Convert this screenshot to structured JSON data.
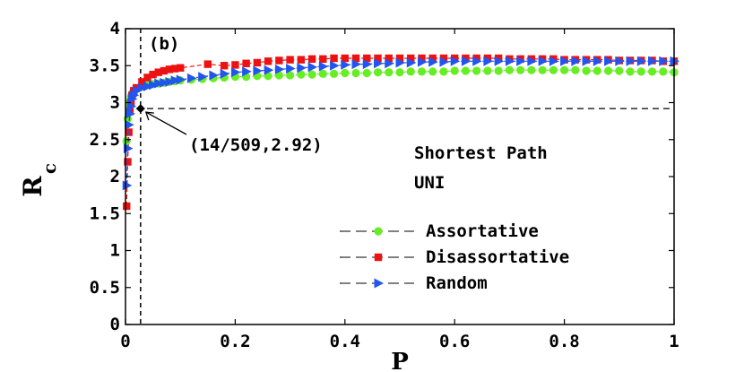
{
  "chart_data": {
    "type": "line",
    "panel_label": "(b)",
    "xlabel": "P",
    "ylabel": {
      "main": "R",
      "sub": "c"
    },
    "xlim": [
      0,
      1
    ],
    "ylim": [
      0,
      4
    ],
    "xticks": [
      "0",
      "0.2",
      "0.4",
      "0.6",
      "0.8",
      "1"
    ],
    "yticks": [
      "0",
      "0.5",
      "1",
      "1.5",
      "2",
      "2.5",
      "3",
      "3.5",
      "4"
    ],
    "grid": false,
    "reference_lines": {
      "x": 0.0275,
      "y": 2.92
    },
    "critical_point": {
      "x": 0.0275,
      "y": 2.92,
      "label": "(14/509,2.92)"
    },
    "annotation_lines": [
      "Shortest Path",
      "UNI"
    ],
    "legend_position": "lower-right",
    "series": [
      {
        "name": "Assortative",
        "color": "#66ee22",
        "marker": "circle",
        "x": [
          0.002,
          0.004,
          0.006,
          0.008,
          0.01,
          0.012,
          0.015,
          0.02,
          0.03,
          0.04,
          0.05,
          0.06,
          0.07,
          0.08,
          0.09,
          0.1,
          0.12,
          0.14,
          0.16,
          0.18,
          0.2,
          0.22,
          0.24,
          0.26,
          0.28,
          0.3,
          0.32,
          0.34,
          0.36,
          0.38,
          0.4,
          0.42,
          0.44,
          0.46,
          0.48,
          0.5,
          0.52,
          0.54,
          0.56,
          0.58,
          0.6,
          0.62,
          0.64,
          0.66,
          0.68,
          0.7,
          0.72,
          0.74,
          0.76,
          0.78,
          0.8,
          0.82,
          0.84,
          0.86,
          0.88,
          0.9,
          0.92,
          0.94,
          0.96,
          0.98,
          1.0
        ],
        "y": [
          2.48,
          2.78,
          2.95,
          3.02,
          3.08,
          3.12,
          3.16,
          3.19,
          3.22,
          3.24,
          3.25,
          3.26,
          3.27,
          3.28,
          3.29,
          3.3,
          3.31,
          3.32,
          3.33,
          3.34,
          3.35,
          3.35,
          3.36,
          3.36,
          3.37,
          3.37,
          3.38,
          3.38,
          3.39,
          3.39,
          3.4,
          3.4,
          3.4,
          3.41,
          3.41,
          3.41,
          3.42,
          3.42,
          3.42,
          3.42,
          3.43,
          3.43,
          3.43,
          3.43,
          3.43,
          3.44,
          3.44,
          3.44,
          3.44,
          3.44,
          3.44,
          3.44,
          3.43,
          3.43,
          3.43,
          3.43,
          3.42,
          3.42,
          3.42,
          3.42,
          3.41
        ]
      },
      {
        "name": "Disassortative",
        "color": "#ee1111",
        "marker": "square",
        "x": [
          0.002,
          0.004,
          0.006,
          0.008,
          0.01,
          0.012,
          0.015,
          0.02,
          0.03,
          0.04,
          0.05,
          0.06,
          0.07,
          0.08,
          0.09,
          0.1,
          0.15,
          0.18,
          0.2,
          0.22,
          0.24,
          0.26,
          0.28,
          0.3,
          0.32,
          0.34,
          0.36,
          0.38,
          0.4,
          0.42,
          0.44,
          0.46,
          0.48,
          0.5,
          0.52,
          0.54,
          0.56,
          0.58,
          0.6,
          0.62,
          0.64,
          0.66,
          0.68,
          0.7,
          0.72,
          0.74,
          0.76,
          0.78,
          0.8,
          0.82,
          0.84,
          0.86,
          0.88,
          0.9,
          0.92,
          0.94,
          0.96,
          0.98,
          1.0
        ],
        "y": [
          1.6,
          2.2,
          2.6,
          2.88,
          3.0,
          3.1,
          3.16,
          3.2,
          3.28,
          3.34,
          3.38,
          3.41,
          3.43,
          3.45,
          3.46,
          3.47,
          3.52,
          3.5,
          3.51,
          3.53,
          3.54,
          3.56,
          3.57,
          3.58,
          3.58,
          3.59,
          3.59,
          3.6,
          3.6,
          3.6,
          3.6,
          3.6,
          3.6,
          3.6,
          3.6,
          3.6,
          3.6,
          3.6,
          3.6,
          3.6,
          3.6,
          3.6,
          3.6,
          3.59,
          3.59,
          3.59,
          3.59,
          3.59,
          3.58,
          3.58,
          3.58,
          3.58,
          3.58,
          3.57,
          3.57,
          3.57,
          3.57,
          3.56,
          3.56
        ]
      },
      {
        "name": "Random",
        "color": "#2255ee",
        "marker": "triangle-right",
        "x": [
          0.002,
          0.004,
          0.006,
          0.008,
          0.01,
          0.012,
          0.015,
          0.02,
          0.03,
          0.04,
          0.05,
          0.06,
          0.07,
          0.08,
          0.09,
          0.1,
          0.12,
          0.14,
          0.16,
          0.18,
          0.2,
          0.22,
          0.24,
          0.26,
          0.28,
          0.3,
          0.32,
          0.34,
          0.36,
          0.38,
          0.4,
          0.42,
          0.44,
          0.46,
          0.48,
          0.5,
          0.52,
          0.54,
          0.56,
          0.58,
          0.6,
          0.62,
          0.64,
          0.66,
          0.68,
          0.7,
          0.72,
          0.74,
          0.76,
          0.78,
          0.8,
          0.82,
          0.84,
          0.86,
          0.88,
          0.9,
          0.92,
          0.94,
          0.96,
          0.98,
          1.0
        ],
        "y": [
          1.88,
          2.38,
          2.7,
          2.85,
          2.95,
          3.05,
          3.1,
          3.16,
          3.2,
          3.22,
          3.24,
          3.26,
          3.27,
          3.28,
          3.3,
          3.31,
          3.33,
          3.35,
          3.37,
          3.39,
          3.41,
          3.42,
          3.43,
          3.44,
          3.45,
          3.46,
          3.47,
          3.48,
          3.49,
          3.5,
          3.51,
          3.52,
          3.52,
          3.53,
          3.53,
          3.54,
          3.54,
          3.55,
          3.55,
          3.55,
          3.56,
          3.56,
          3.56,
          3.56,
          3.56,
          3.56,
          3.56,
          3.56,
          3.56,
          3.56,
          3.56,
          3.56,
          3.56,
          3.56,
          3.56,
          3.56,
          3.56,
          3.56,
          3.56,
          3.56,
          3.56
        ]
      }
    ]
  }
}
